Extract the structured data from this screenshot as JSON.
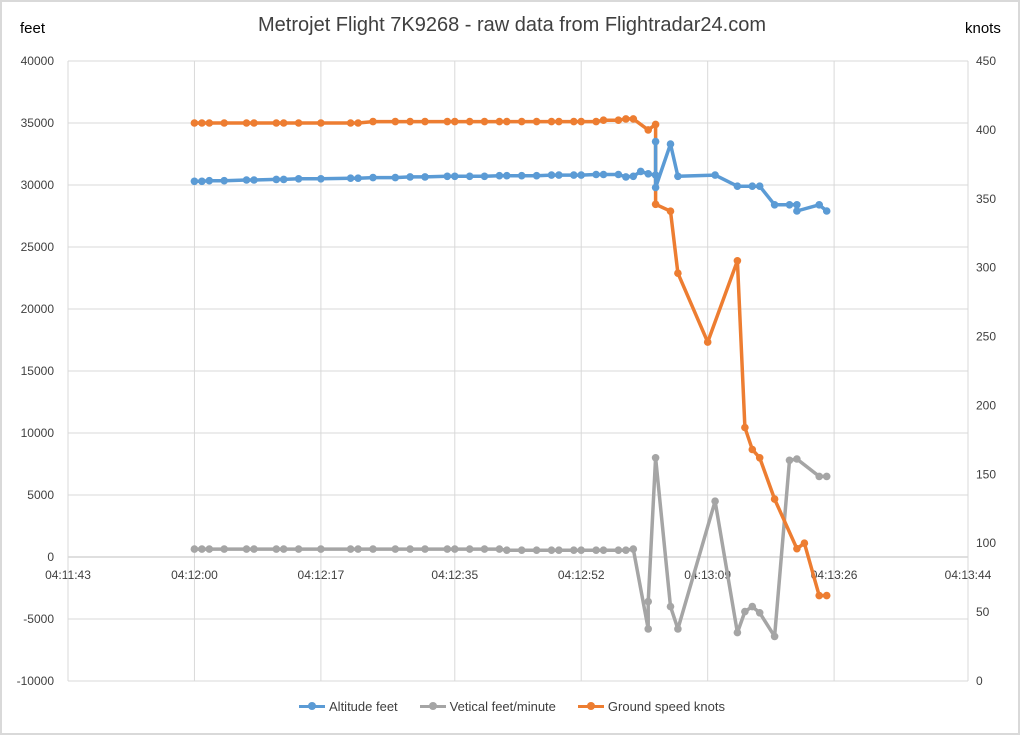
{
  "chart_data": {
    "type": "line",
    "title": "Metrojet Flight 7K9268 - raw data from Flightradar24.com",
    "ylabel": "feet",
    "y2label": "knots",
    "xlim": [
      "04:11:43",
      "04:13:44"
    ],
    "ylim": [
      -10000,
      40000
    ],
    "y2lim": [
      0,
      450
    ],
    "x_ticks": [
      "04:11:43",
      "04:12:00",
      "04:12:17",
      "04:12:35",
      "04:12:52",
      "04:13:09",
      "04:13:26",
      "04:13:44"
    ],
    "y_ticks": [
      "40000",
      "35000",
      "30000",
      "25000",
      "20000",
      "15000",
      "10000",
      "5000",
      "0",
      "-5000",
      "-10000"
    ],
    "y2_ticks": [
      "450",
      "400",
      "350",
      "300",
      "250",
      "200",
      "150",
      "100",
      "50",
      "0"
    ],
    "grid": true,
    "legend": "bottom",
    "series": [
      {
        "name": "Altitude feet",
        "axis": "left",
        "color": "#5b9bd5",
        "points": [
          [
            "04:12:00",
            30300
          ],
          [
            "04:12:01",
            30300
          ],
          [
            "04:12:02",
            30350
          ],
          [
            "04:12:04",
            30350
          ],
          [
            "04:12:07",
            30400
          ],
          [
            "04:12:08",
            30400
          ],
          [
            "04:12:11",
            30450
          ],
          [
            "04:12:12",
            30450
          ],
          [
            "04:12:14",
            30500
          ],
          [
            "04:12:17",
            30500
          ],
          [
            "04:12:21",
            30550
          ],
          [
            "04:12:22",
            30550
          ],
          [
            "04:12:24",
            30600
          ],
          [
            "04:12:27",
            30600
          ],
          [
            "04:12:29",
            30650
          ],
          [
            "04:12:31",
            30650
          ],
          [
            "04:12:34",
            30700
          ],
          [
            "04:12:35",
            30700
          ],
          [
            "04:12:37",
            30700
          ],
          [
            "04:12:39",
            30700
          ],
          [
            "04:12:41",
            30750
          ],
          [
            "04:12:42",
            30750
          ],
          [
            "04:12:44",
            30750
          ],
          [
            "04:12:46",
            30750
          ],
          [
            "04:12:48",
            30800
          ],
          [
            "04:12:49",
            30800
          ],
          [
            "04:12:51",
            30800
          ],
          [
            "04:12:52",
            30800
          ],
          [
            "04:12:54",
            30850
          ],
          [
            "04:12:55",
            30850
          ],
          [
            "04:12:57",
            30850
          ],
          [
            "04:12:58",
            30650
          ],
          [
            "04:12:59",
            30700
          ],
          [
            "04:13:00",
            31100
          ],
          [
            "04:13:01",
            30900
          ],
          [
            "04:13:02",
            30800
          ],
          [
            "04:13:02",
            33500
          ],
          [
            "04:13:02",
            29800
          ],
          [
            "04:13:04",
            33300
          ],
          [
            "04:13:05",
            30700
          ],
          [
            "04:13:10",
            30800
          ],
          [
            "04:13:13",
            29900
          ],
          [
            "04:13:15",
            29900
          ],
          [
            "04:13:16",
            29900
          ],
          [
            "04:13:18",
            28400
          ],
          [
            "04:13:20",
            28400
          ],
          [
            "04:13:21",
            28400
          ],
          [
            "04:13:21",
            27900
          ],
          [
            "04:13:24",
            28400
          ],
          [
            "04:13:25",
            27900
          ]
        ]
      },
      {
        "name": "Vetical feet/minute",
        "axis": "left",
        "color": "#a5a5a5",
        "points": [
          [
            "04:12:00",
            640
          ],
          [
            "04:12:01",
            640
          ],
          [
            "04:12:02",
            640
          ],
          [
            "04:12:04",
            640
          ],
          [
            "04:12:07",
            640
          ],
          [
            "04:12:08",
            640
          ],
          [
            "04:12:11",
            640
          ],
          [
            "04:12:12",
            640
          ],
          [
            "04:12:14",
            640
          ],
          [
            "04:12:17",
            640
          ],
          [
            "04:12:21",
            640
          ],
          [
            "04:12:22",
            640
          ],
          [
            "04:12:24",
            640
          ],
          [
            "04:12:27",
            640
          ],
          [
            "04:12:29",
            640
          ],
          [
            "04:12:31",
            640
          ],
          [
            "04:12:34",
            640
          ],
          [
            "04:12:35",
            640
          ],
          [
            "04:12:37",
            640
          ],
          [
            "04:12:39",
            640
          ],
          [
            "04:12:41",
            640
          ],
          [
            "04:12:42",
            550
          ],
          [
            "04:12:44",
            550
          ],
          [
            "04:12:46",
            550
          ],
          [
            "04:12:48",
            550
          ],
          [
            "04:12:49",
            550
          ],
          [
            "04:12:51",
            550
          ],
          [
            "04:12:52",
            550
          ],
          [
            "04:12:54",
            550
          ],
          [
            "04:12:55",
            550
          ],
          [
            "04:12:57",
            550
          ],
          [
            "04:12:58",
            550
          ],
          [
            "04:12:59",
            640
          ],
          [
            "04:13:01",
            -5800
          ],
          [
            "04:13:01",
            -3600
          ],
          [
            "04:13:02",
            8000
          ],
          [
            "04:13:04",
            -4000
          ],
          [
            "04:13:05",
            -5800
          ],
          [
            "04:13:10",
            4500
          ],
          [
            "04:13:13",
            -6100
          ],
          [
            "04:13:14",
            -4400
          ],
          [
            "04:13:15",
            -4000
          ],
          [
            "04:13:16",
            -4500
          ],
          [
            "04:13:18",
            -6400
          ],
          [
            "04:13:20",
            7800
          ],
          [
            "04:13:21",
            7900
          ],
          [
            "04:13:24",
            6500
          ],
          [
            "04:13:25",
            6500
          ]
        ]
      },
      {
        "name": "Ground speed knots",
        "axis": "right",
        "color": "#ed7d31",
        "points": [
          [
            "04:12:00",
            405
          ],
          [
            "04:12:01",
            405
          ],
          [
            "04:12:02",
            405
          ],
          [
            "04:12:04",
            405
          ],
          [
            "04:12:07",
            405
          ],
          [
            "04:12:08",
            405
          ],
          [
            "04:12:11",
            405
          ],
          [
            "04:12:12",
            405
          ],
          [
            "04:12:14",
            405
          ],
          [
            "04:12:17",
            405
          ],
          [
            "04:12:21",
            405
          ],
          [
            "04:12:22",
            405
          ],
          [
            "04:12:24",
            406
          ],
          [
            "04:12:27",
            406
          ],
          [
            "04:12:29",
            406
          ],
          [
            "04:12:31",
            406
          ],
          [
            "04:12:34",
            406
          ],
          [
            "04:12:35",
            406
          ],
          [
            "04:12:37",
            406
          ],
          [
            "04:12:39",
            406
          ],
          [
            "04:12:41",
            406
          ],
          [
            "04:12:42",
            406
          ],
          [
            "04:12:44",
            406
          ],
          [
            "04:12:46",
            406
          ],
          [
            "04:12:48",
            406
          ],
          [
            "04:12:49",
            406
          ],
          [
            "04:12:51",
            406
          ],
          [
            "04:12:52",
            406
          ],
          [
            "04:12:54",
            406
          ],
          [
            "04:12:55",
            407
          ],
          [
            "04:12:57",
            407
          ],
          [
            "04:12:58",
            408
          ],
          [
            "04:12:59",
            408
          ],
          [
            "04:13:01",
            400
          ],
          [
            "04:13:02",
            404
          ],
          [
            "04:13:02",
            346
          ],
          [
            "04:13:04",
            341
          ],
          [
            "04:13:05",
            296
          ],
          [
            "04:13:09",
            246
          ],
          [
            "04:13:13",
            305
          ],
          [
            "04:13:14",
            184
          ],
          [
            "04:13:15",
            168
          ],
          [
            "04:13:16",
            162
          ],
          [
            "04:13:18",
            132
          ],
          [
            "04:13:21",
            96
          ],
          [
            "04:13:22",
            100
          ],
          [
            "04:13:24",
            62
          ],
          [
            "04:13:25",
            62
          ]
        ]
      }
    ]
  }
}
